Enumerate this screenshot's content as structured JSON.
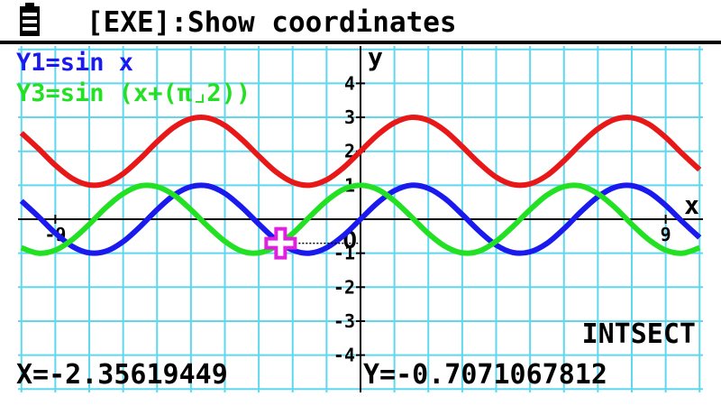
{
  "header": {
    "title": "[EXE]:Show coordinates"
  },
  "graph": {
    "type": "line",
    "x_label": "x",
    "y_label": "y",
    "origin_label": "O",
    "xlim": [
      -10.1,
      10.1
    ],
    "ylim": [
      -5.1,
      5.1
    ],
    "xticks": [
      -9,
      9
    ],
    "yticks": [
      -4,
      -3,
      -2,
      -1,
      1,
      2,
      3,
      4
    ],
    "grid": true,
    "grid_color": "#5fd8ee",
    "x": [
      -10,
      -9.5,
      -9,
      -8.5,
      -8,
      -7.5,
      -7,
      -6.5,
      -6,
      -5.5,
      -5,
      -4.5,
      -4,
      -3.5,
      -3,
      -2.5,
      -2,
      -1.5,
      -1,
      -0.5,
      0,
      0.5,
      1,
      1.5,
      2,
      2.5,
      3,
      3.5,
      4,
      4.5,
      5,
      5.5,
      6,
      6.5,
      7,
      7.5,
      8,
      8.5,
      9,
      9.5,
      10
    ],
    "series": [
      {
        "name": "Y1=sin x",
        "color": "#1a1aee",
        "values": [
          0.54,
          0.08,
          -0.41,
          -0.8,
          -0.99,
          -0.94,
          -0.66,
          -0.22,
          0.28,
          0.71,
          0.96,
          0.98,
          0.76,
          0.35,
          -0.14,
          -0.6,
          -0.91,
          -1,
          -0.84,
          -0.48,
          0,
          0.48,
          0.84,
          1,
          0.91,
          0.6,
          0.14,
          -0.35,
          -0.76,
          -0.98,
          -0.96,
          -0.71,
          -0.28,
          0.22,
          0.66,
          0.94,
          0.99,
          0.8,
          0.41,
          -0.08,
          -0.54
        ]
      },
      {
        "color": "#e81818",
        "values": [
          2.54,
          2.08,
          1.59,
          1.2,
          1.01,
          1.06,
          1.34,
          1.78,
          2.28,
          2.71,
          2.96,
          2.98,
          2.76,
          2.35,
          1.86,
          1.4,
          1.09,
          1,
          1.16,
          1.52,
          2,
          2.48,
          2.84,
          3,
          2.91,
          2.6,
          2.14,
          1.65,
          1.24,
          1.02,
          1.04,
          1.29,
          1.72,
          2.22,
          2.66,
          2.94,
          2.99,
          2.8,
          2.41,
          1.92,
          1.46
        ]
      },
      {
        "name": "Y3=sin (x+(π⌟2))",
        "color": "#22e022",
        "values": [
          -0.84,
          -1,
          -0.91,
          -0.6,
          -0.15,
          0.35,
          0.75,
          0.98,
          0.96,
          0.71,
          0.28,
          -0.21,
          -0.65,
          -0.94,
          -0.99,
          -0.8,
          -0.42,
          0.07,
          0.54,
          0.88,
          1,
          0.88,
          0.54,
          0.07,
          -0.42,
          -0.8,
          -0.99,
          -0.94,
          -0.65,
          -0.21,
          0.28,
          0.71,
          0.96,
          0.98,
          0.75,
          0.35,
          -0.15,
          -0.6,
          -0.91,
          -1,
          -0.84
        ]
      }
    ],
    "cursor": {
      "x": -2.35619449,
      "y": -0.7071067812,
      "color": "#e020e0"
    },
    "status": "INTSECT",
    "readout": {
      "x": "X=-2.35619449",
      "y": "Y=-0.7071067812"
    }
  }
}
